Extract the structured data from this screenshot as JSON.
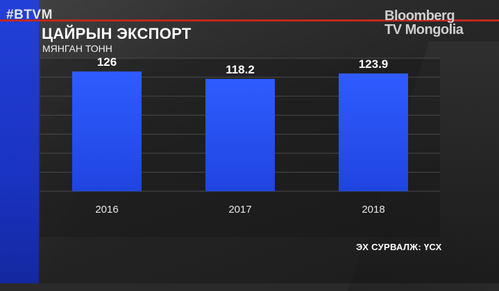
{
  "overlay": {
    "hashtag": "#BTVM",
    "logo_line1": "Bloomberg",
    "logo_line2": "TV Mongolia"
  },
  "colors": {
    "bar": "#1f45e0",
    "bar_top": "#2f5cff",
    "gridline": "#4a4a4a",
    "accent_line": "#c0281c"
  },
  "chart_data": {
    "type": "bar",
    "title": "ЦАЙРЫН ЭКСПОРТ",
    "subtitle": "МЯНГАН ТОНН",
    "categories": [
      "2016",
      "2017",
      "2018"
    ],
    "values": [
      126,
      118.2,
      123.9
    ],
    "value_labels": [
      "126",
      "118.2",
      "123.9"
    ],
    "ylim": [
      0,
      140
    ],
    "grid": true,
    "source": "ЭХ СУРВАЛЖ: ҮСХ"
  }
}
